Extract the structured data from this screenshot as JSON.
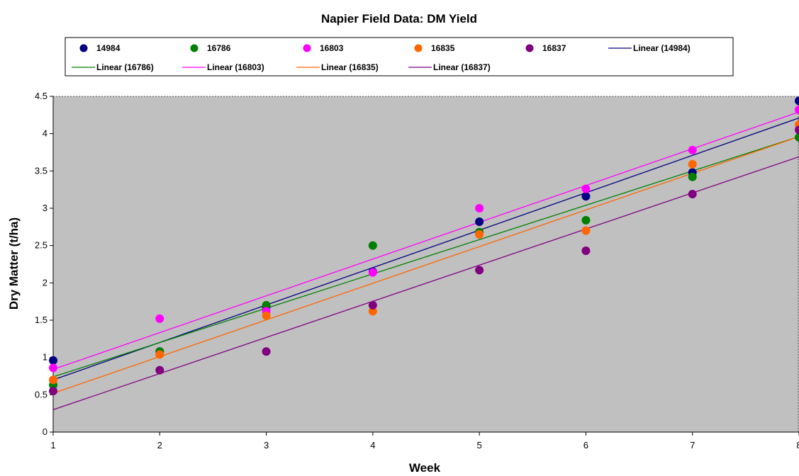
{
  "chart_data": {
    "type": "scatter",
    "title": "Napier Field Data: DM Yield",
    "xlabel": "Week",
    "ylabel": "Dry Matter (t/ha)",
    "xlim": [
      1,
      8
    ],
    "ylim": [
      0,
      4.5
    ],
    "xticks": [
      "1",
      "2",
      "3",
      "4",
      "5",
      "6",
      "7",
      "8"
    ],
    "yticks": [
      "0",
      "0.5",
      "1",
      "1.5",
      "2",
      "2.5",
      "3",
      "3.5",
      "4",
      "4.5"
    ],
    "grid": false,
    "legend": "top",
    "plot_background": "#c0c0c0",
    "x": [
      1,
      2,
      3,
      4,
      5,
      6,
      7,
      8
    ],
    "series": [
      {
        "name": "14984",
        "color": "#000080",
        "values": [
          0.96,
          1.08,
          1.68,
          2.15,
          2.82,
          3.16,
          3.48,
          4.44
        ],
        "trend": {
          "name": "Linear (14984)",
          "start": 0.7,
          "end": 4.21
        }
      },
      {
        "name": "16786",
        "color": "#008000",
        "values": [
          0.63,
          1.08,
          1.7,
          2.5,
          2.68,
          2.84,
          3.42,
          3.95
        ],
        "trend": {
          "name": "Linear (16786)",
          "start": 0.74,
          "end": 3.96
        }
      },
      {
        "name": "16803",
        "color": "#ff00ff",
        "values": [
          0.86,
          1.52,
          1.62,
          2.14,
          3.0,
          3.26,
          3.78,
          4.32
        ],
        "trend": {
          "name": "Linear (16803)",
          "start": 0.84,
          "end": 4.29
        }
      },
      {
        "name": "16835",
        "color": "#ff6600",
        "values": [
          0.7,
          1.04,
          1.56,
          1.62,
          2.65,
          2.7,
          3.59,
          4.12
        ],
        "trend": {
          "name": "Linear (16835)",
          "start": 0.52,
          "end": 3.96
        }
      },
      {
        "name": "16837",
        "color": "#800080",
        "values": [
          0.55,
          0.83,
          1.08,
          1.7,
          2.17,
          2.43,
          3.19,
          4.05
        ],
        "trend": {
          "name": "Linear (16837)",
          "start": 0.3,
          "end": 3.69
        }
      }
    ]
  }
}
